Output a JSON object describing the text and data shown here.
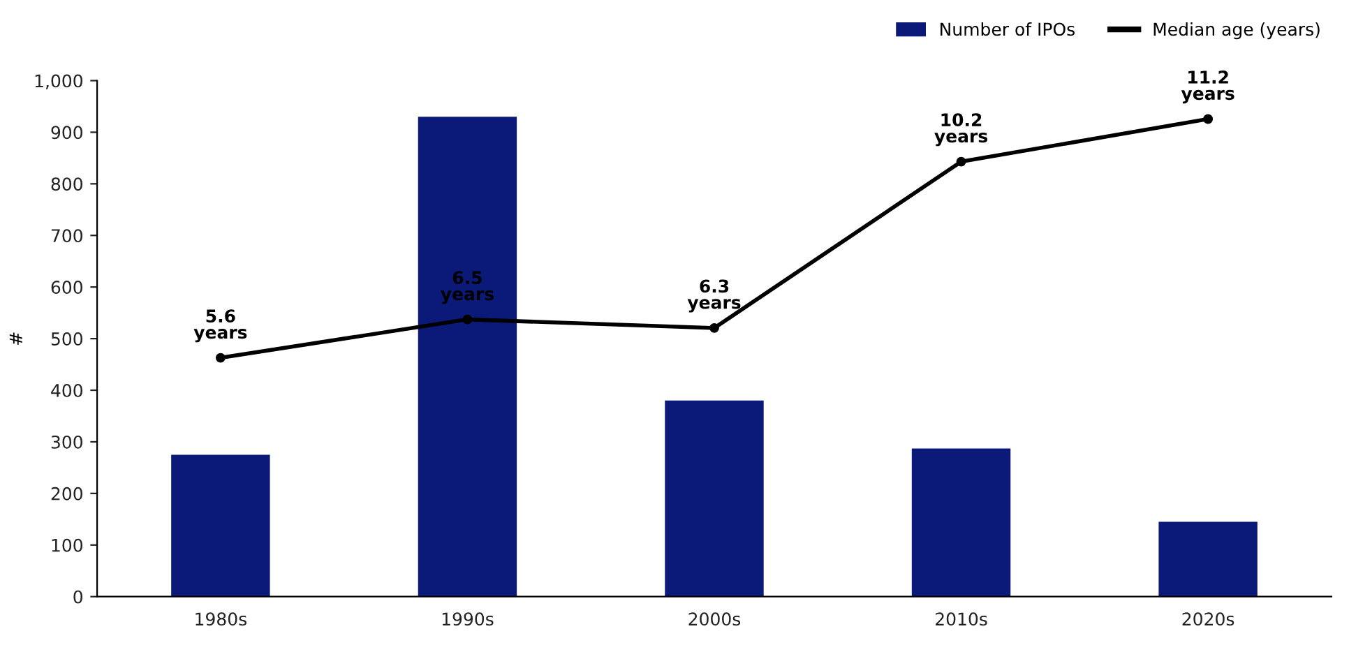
{
  "chart_data": {
    "type": "bar",
    "ylabel": "#",
    "categories": [
      "1980s",
      "1990s",
      "2000s",
      "2010s",
      "2020s"
    ],
    "ylim": [
      0,
      1000
    ],
    "yticks": [
      0,
      100,
      200,
      300,
      400,
      500,
      600,
      700,
      800,
      900,
      {
        "value": 1000,
        "label": "1,000"
      }
    ],
    "y2lim": [
      0,
      12.1
    ],
    "series": [
      {
        "name": "Number of IPOs",
        "color": "#0b1a78",
        "values": [
          275,
          930,
          380,
          287,
          145
        ]
      },
      {
        "name": "Median age (years)",
        "type": "line",
        "axis": "y2",
        "color": "#000000",
        "marker": "circle",
        "values": [
          5.6,
          6.5,
          6.3,
          10.2,
          11.2
        ],
        "value_labels": [
          "5.6\nyears",
          "6.5\nyears",
          "6.3\nyears",
          "10.2\nyears",
          "11.2\nyears"
        ]
      }
    ],
    "legend": "top right",
    "grid": false
  }
}
